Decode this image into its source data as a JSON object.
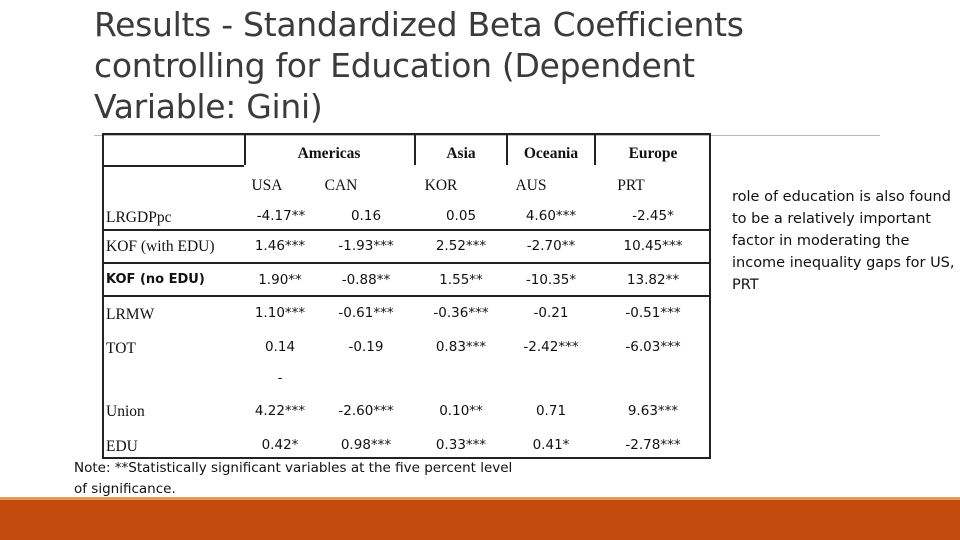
{
  "title": "Results - Standardized Beta Coefficients controlling for Education  (Dependent Variable: Gini)",
  "table": {
    "regions": [
      "Americas",
      "Asia",
      "Oceania",
      "Europe"
    ],
    "countries": [
      "USA",
      "CAN",
      "KOR",
      "AUS",
      "PRT"
    ],
    "rows": [
      {
        "label": "LRGDPpc",
        "values": [
          "-4.17**",
          "0.16",
          "0.05",
          "4.60***",
          "-2.45*"
        ]
      },
      {
        "label": "KOF (with EDU)",
        "values": [
          "1.46***",
          "-1.93***",
          "2.52***",
          "-2.70**",
          "10.45***"
        ]
      },
      {
        "label": "KOF (no EDU)",
        "values": [
          "1.90**",
          "-0.88**",
          "1.55**",
          "-10.35*",
          "13.82**"
        ]
      },
      {
        "label": "LRMW",
        "values": [
          "1.10***",
          "-0.61***",
          "-0.36***",
          "-0.21",
          "-0.51***"
        ]
      },
      {
        "label": "TOT",
        "values": [
          "0.14",
          "-0.19",
          "0.83***",
          "-2.42***",
          "-6.03***"
        ]
      },
      {
        "label": "Union",
        "values": [
          "4.22***",
          "-2.60***",
          "0.10**",
          "0.71",
          "9.63***"
        ]
      },
      {
        "label": "EDU",
        "values": [
          "0.42*",
          "0.98***",
          "0.33***",
          "0.41*",
          "-2.78***"
        ]
      }
    ],
    "stray_dash": "-"
  },
  "note": "Note: **Statistically significant variables at the five percent level of significance.",
  "side_text": "role of education is also found to be a relatively important factor in moderating the income inequality gaps for US, PRT",
  "colors": {
    "footer": "#c34b0d",
    "footer_top": "#e39a5a"
  }
}
